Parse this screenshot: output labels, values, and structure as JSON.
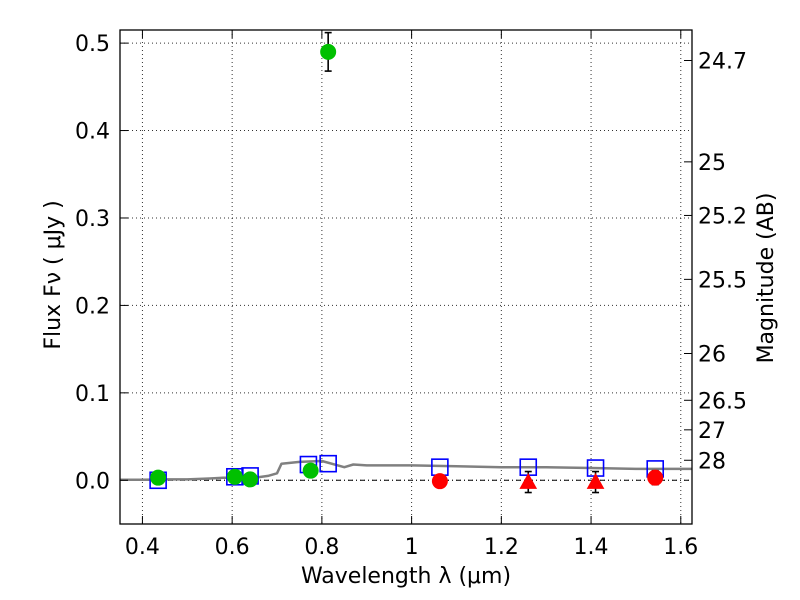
{
  "chart_data": {
    "type": "scatter",
    "title": "",
    "xlabel": "Wavelength  λ (μm)",
    "ylabel": "Flux  Fν  ( μJy )",
    "y2label": "Magnitude (AB)",
    "xlim": [
      0.35,
      1.625
    ],
    "ylim": [
      -0.05,
      0.515
    ],
    "grid": true,
    "legend": null,
    "x_ticks": [
      0.4,
      0.6,
      0.8,
      1.0,
      1.2,
      1.4,
      1.6
    ],
    "x_tick_labels": [
      "0.4",
      "0.6",
      "0.8",
      "1",
      "1.2",
      "1.4",
      "1.6"
    ],
    "y_ticks": [
      0.0,
      0.1,
      0.2,
      0.3,
      0.4,
      0.5
    ],
    "y_tick_labels": [
      "0.0",
      "0.1",
      "0.2",
      "0.3",
      "0.4",
      "0.5"
    ],
    "y2_ticks": [
      {
        "label": "24.7",
        "flux": 0.4801
      },
      {
        "label": "25",
        "flux": 0.3642
      },
      {
        "label": "25.2",
        "flux": 0.3029
      },
      {
        "label": "25.5",
        "flux": 0.2298
      },
      {
        "label": "26",
        "flux": 0.145
      },
      {
        "label": "26.5",
        "flux": 0.0915
      },
      {
        "label": "27",
        "flux": 0.0577
      },
      {
        "label": "28",
        "flux": 0.0229
      }
    ],
    "zero_line": true,
    "model_color": "#808080",
    "model_spectrum": {
      "x": [
        0.35,
        0.4,
        0.45,
        0.5,
        0.55,
        0.58,
        0.6,
        0.62,
        0.65,
        0.68,
        0.7,
        0.71,
        0.75,
        0.8,
        0.85,
        0.87,
        0.9,
        1.0,
        1.1,
        1.2,
        1.3,
        1.4,
        1.5,
        1.625
      ],
      "y": [
        0.0005,
        0.0005,
        0.001,
        0.001,
        0.002,
        0.003,
        0.003,
        0.004,
        0.003,
        0.005,
        0.008,
        0.019,
        0.021,
        0.022,
        0.015,
        0.018,
        0.017,
        0.017,
        0.016,
        0.015,
        0.015,
        0.014,
        0.013,
        0.013
      ]
    },
    "series": [
      {
        "name": "",
        "marker": "square-open",
        "color": "#0000ff",
        "x": [
          0.435,
          0.606,
          0.64,
          0.77,
          0.814,
          1.063,
          1.26,
          1.41,
          1.543
        ],
        "y": [
          0.0,
          0.004,
          0.005,
          0.018,
          0.019,
          0.015,
          0.015,
          0.014,
          0.013
        ]
      },
      {
        "name": "",
        "marker": "circle",
        "color": "#00c000",
        "x": [
          0.435,
          0.606,
          0.64,
          0.775,
          0.814
        ],
        "y": [
          0.003,
          0.004,
          0.001,
          0.011,
          0.49
        ],
        "yerr": [
          0.006,
          0.006,
          0.005,
          0.006,
          0.022
        ]
      },
      {
        "name": "",
        "marker": "circle",
        "color": "#ff0000",
        "x": [
          1.063,
          1.543
        ],
        "y": [
          -0.001,
          0.003
        ],
        "yerr": [
          0.006,
          0.008
        ]
      },
      {
        "name": "",
        "marker": "triangle",
        "color": "#ff0000",
        "x": [
          1.26,
          1.41
        ],
        "y": [
          -0.002,
          -0.002
        ],
        "yerr": [
          0.012,
          0.012
        ]
      }
    ]
  }
}
